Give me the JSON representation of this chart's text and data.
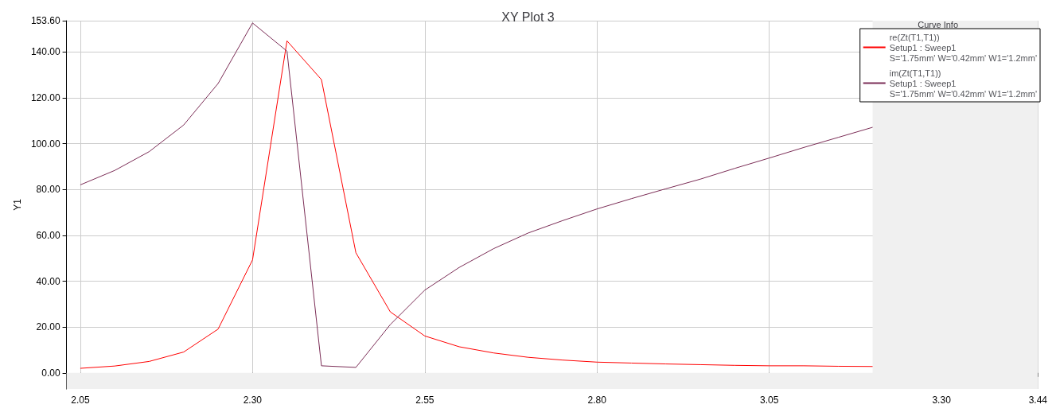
{
  "chart_data": {
    "type": "line",
    "title": "XY Plot 3",
    "ylabel": "Y1",
    "legend_title": "Curve Info",
    "legend": "top right",
    "grid": true,
    "marker": "none",
    "line_style": "solid",
    "x": [
      2.05,
      2.1,
      2.15,
      2.2,
      2.25,
      2.3,
      2.35,
      2.4,
      2.45,
      2.5,
      2.55,
      2.6,
      2.65,
      2.7,
      2.75,
      2.8,
      2.85,
      2.9,
      2.95,
      3.0,
      3.05,
      3.1,
      3.15,
      3.2
    ],
    "series": [
      {
        "name": "re(Zt(T1,T1))\nSetup1 : Sweep1\nS='1.75mm' W='0.42mm' W1='1.2mm'",
        "color": "#ff0000",
        "values": [
          2.0,
          3.0,
          5.0,
          9.1,
          19.1,
          49.3,
          144.8,
          127.9,
          52.4,
          26.6,
          16.1,
          11.4,
          8.7,
          6.8,
          5.6,
          4.7,
          4.3,
          3.9,
          3.6,
          3.3,
          3.1,
          3.1,
          2.9,
          2.8
        ]
      },
      {
        "name": "im(Zt(T1,T1))\nSetup1 : Sweep1\nS='1.75mm' W='0.42mm' W1='1.2mm'",
        "color": "#7b2d56",
        "values": [
          82.0,
          88.3,
          96.5,
          108.1,
          126.2,
          152.6,
          140.3,
          3.1,
          2.4,
          21.1,
          36.1,
          46.0,
          54.2,
          61.0,
          66.4,
          71.5,
          76.0,
          80.3,
          84.5,
          89.2,
          93.7,
          98.3,
          102.7,
          107.1
        ]
      }
    ],
    "xlim": [
      2.03,
      3.44
    ],
    "xticks": [
      {
        "value": 2.05,
        "label": "2.05"
      },
      {
        "value": 2.3,
        "label": "2.30"
      },
      {
        "value": 2.55,
        "label": "2.55"
      },
      {
        "value": 2.8,
        "label": "2.80"
      },
      {
        "value": 3.05,
        "label": "3.05"
      },
      {
        "value": 3.3,
        "label": "3.30"
      },
      {
        "value": 3.44,
        "label": "3.44"
      }
    ],
    "ylim": [
      -7,
      153.6
    ],
    "yticks": [
      {
        "value": 0,
        "label": "0.00"
      },
      {
        "value": 20,
        "label": "20.00"
      },
      {
        "value": 40,
        "label": "40.00"
      },
      {
        "value": 60,
        "label": "60.00"
      },
      {
        "value": 80,
        "label": "80.00"
      },
      {
        "value": 100,
        "label": "100.00"
      },
      {
        "value": 120,
        "label": "120.00"
      },
      {
        "value": 140,
        "label": "140.00"
      },
      {
        "value": 153.6,
        "label": "153.60"
      }
    ],
    "bands": [
      {
        "axis": "x",
        "from": 3.2,
        "to": 3.44,
        "color": "#f0f0f0"
      },
      {
        "axis": "y",
        "from": -7,
        "to": 0,
        "color": "#f0f0f0"
      }
    ]
  }
}
